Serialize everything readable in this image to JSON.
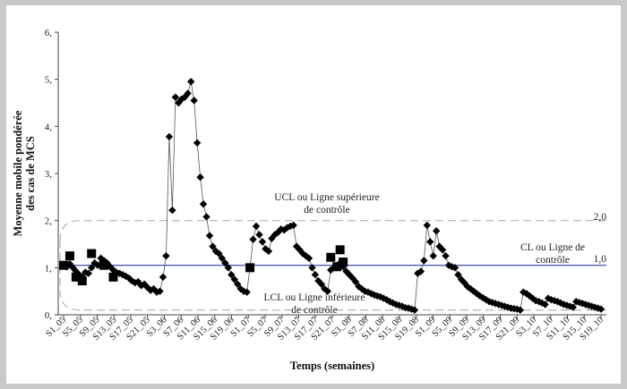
{
  "chart_data": {
    "type": "line",
    "title": "",
    "ylabel_line1": "Moyenne mobile pondérée",
    "ylabel_line2": "des cas de MCS",
    "xlabel": "Temps (semaines)",
    "ylim": [
      0,
      6
    ],
    "yticks": [
      "0,",
      "1,",
      "2,",
      "3,",
      "4,",
      "5,",
      "6,"
    ],
    "xtick_labels": [
      "S1_05",
      "S5_05",
      "S9_05",
      "S13_05",
      "S17_05",
      "S21_05",
      "S3_06",
      "S7_06",
      "S11_06",
      "S15_06",
      "S19_06",
      "S1_07",
      "S5_07",
      "S9_07",
      "S13_07",
      "S17_07",
      "S21_07",
      "S3_08",
      "S7_08",
      "S11_08",
      "S15_08",
      "S19_08",
      "S1_09",
      "S5_09",
      "S9_09",
      "S13_09",
      "S17_09",
      "S21_09",
      "S3_10",
      "S7_10",
      "S11_10",
      "S15_10",
      "S19_10"
    ],
    "grid": false,
    "series": [
      {
        "name": "",
        "marker": "diamond",
        "color": "#000000",
        "values": [
          1.05,
          1.02,
          1.08,
          1.0,
          0.92,
          0.85,
          0.8,
          0.9,
          0.88,
          1.0,
          1.1,
          1.05,
          1.2,
          1.15,
          1.1,
          1.02,
          0.95,
          0.9,
          0.88,
          0.85,
          0.82,
          0.78,
          0.72,
          0.68,
          0.7,
          0.62,
          0.65,
          0.58,
          0.52,
          0.55,
          0.48,
          0.5,
          0.8,
          1.25,
          3.78,
          2.22,
          4.62,
          4.5,
          4.58,
          4.62,
          4.7,
          4.95,
          4.55,
          3.65,
          2.92,
          2.35,
          2.08,
          1.68,
          1.45,
          1.35,
          1.3,
          1.2,
          1.1,
          1.0,
          0.85,
          0.75,
          0.65,
          0.55,
          0.5,
          0.48,
          1.0,
          1.6,
          1.88,
          1.7,
          1.55,
          1.4,
          1.35,
          1.62,
          1.7,
          1.75,
          1.82,
          1.8,
          1.85,
          1.88,
          1.9,
          1.45,
          1.38,
          1.3,
          1.25,
          1.2,
          1.0,
          0.85,
          0.72,
          0.65,
          0.55,
          0.5,
          0.95,
          1.0,
          1.05,
          1.1,
          1.02,
          0.92,
          0.85,
          0.78,
          0.7,
          0.6,
          0.55,
          0.5,
          0.48,
          0.45,
          0.42,
          0.4,
          0.38,
          0.35,
          0.32,
          0.28,
          0.25,
          0.22,
          0.2,
          0.18,
          0.15,
          0.14,
          0.12,
          0.1,
          0.88,
          0.92,
          1.15,
          1.9,
          1.55,
          1.25,
          1.78,
          1.45,
          1.38,
          1.25,
          1.05,
          1.02,
          1.0,
          0.85,
          0.75,
          0.68,
          0.6,
          0.55,
          0.5,
          0.45,
          0.4,
          0.36,
          0.32,
          0.28,
          0.26,
          0.24,
          0.22,
          0.2,
          0.18,
          0.16,
          0.14,
          0.13,
          0.12,
          0.1,
          0.48,
          0.45,
          0.4,
          0.35,
          0.3,
          0.28,
          0.25,
          0.22,
          0.35,
          0.32,
          0.3,
          0.28,
          0.25,
          0.22,
          0.2,
          0.18,
          0.16,
          0.28,
          0.26,
          0.24,
          0.22,
          0.2,
          0.18,
          0.16,
          0.14,
          0.12
        ]
      }
    ],
    "square_markers": [
      {
        "index": 0,
        "value": 1.05
      },
      {
        "index": 2,
        "value": 1.25
      },
      {
        "index": 4,
        "value": 0.8
      },
      {
        "index": 6,
        "value": 0.72
      },
      {
        "index": 9,
        "value": 1.3
      },
      {
        "index": 13,
        "value": 1.05
      },
      {
        "index": 16,
        "value": 0.8
      },
      {
        "index": 60,
        "value": 1.0
      },
      {
        "index": 86,
        "value": 1.22
      },
      {
        "index": 88,
        "value": 1.02
      },
      {
        "index": 89,
        "value": 1.38
      },
      {
        "index": 90,
        "value": 1.12
      }
    ],
    "reference_lines": {
      "cl_value": 1.05,
      "cl_color": "#2a3f9d",
      "ucl_value": 2.0,
      "lcl_value": 0.1,
      "limit_color": "#b5b5b5",
      "cl_right_label": "1,0",
      "ucl_right_label": "2,0"
    },
    "annotations": {
      "ucl_line1": "UCL ou Ligne supérieure",
      "ucl_line2": "de contrôle",
      "lcl_line1": "LCL ou Ligne inférieure",
      "lcl_line2": "de contrôle",
      "cl_line1": "CL ou Ligne de",
      "cl_line2": "contrôle"
    }
  }
}
